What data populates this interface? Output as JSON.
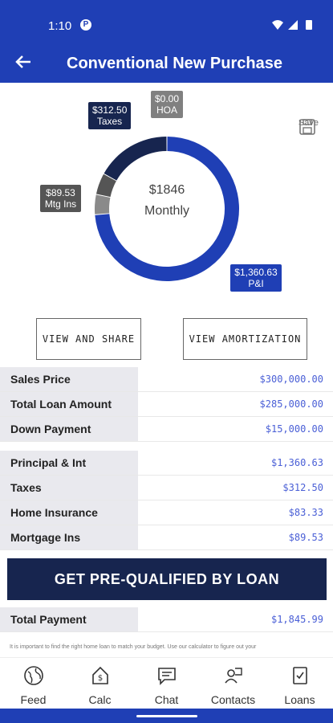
{
  "status": {
    "time": "1:10",
    "badge": "P"
  },
  "header": {
    "title": "Conventional New Purchase"
  },
  "chart": {
    "center_amount": "$1846",
    "center_label": "Monthly",
    "callouts": {
      "taxes": {
        "amount": "$312.50",
        "label": "Taxes"
      },
      "hoa": {
        "amount": "$0.00",
        "label": "HOA"
      },
      "mtg": {
        "amount": "$89.53",
        "label": "Mtg Ins"
      },
      "pi": {
        "amount": "$1,360.63",
        "label": "P&I"
      }
    },
    "save_label": "Save"
  },
  "chart_data": {
    "type": "pie",
    "categories": [
      "P&I",
      "Home Insurance",
      "Mtg Ins",
      "Taxes",
      "HOA"
    ],
    "values": [
      1360.63,
      83.33,
      89.53,
      312.5,
      0.0
    ],
    "colors": [
      "#1f3fb5",
      "#8a8a8a",
      "#555555",
      "#17254f",
      "#808080"
    ]
  },
  "actions": {
    "share": "VIEW AND SHARE",
    "amortization": "VIEW AMORTIZATION"
  },
  "loan_table": [
    {
      "label": "Sales Price",
      "value": "$300,000.00"
    },
    {
      "label": "Total Loan Amount",
      "value": "$285,000.00"
    },
    {
      "label": "Down Payment",
      "value": "$15,000.00"
    }
  ],
  "payment_table": [
    {
      "label": "Principal & Int",
      "value": "$1,360.63"
    },
    {
      "label": "Taxes",
      "value": "$312.50"
    },
    {
      "label": "Home Insurance",
      "value": "$83.33"
    },
    {
      "label": "Mortgage Ins",
      "value": "$89.53"
    }
  ],
  "cta": "GET PRE-QUALIFIED BY LOAN",
  "total": {
    "label": "Total Payment",
    "value": "$1,845.99"
  },
  "disclaimer": "It is important to find the right home loan to match your budget. Use our calculator to figure out your",
  "tabs": [
    {
      "label": "Feed",
      "icon": "globe-icon"
    },
    {
      "label": "Calc",
      "icon": "calculator-house-icon"
    },
    {
      "label": "Chat",
      "icon": "chat-icon"
    },
    {
      "label": "Contacts",
      "icon": "contacts-icon"
    },
    {
      "label": "Loans",
      "icon": "loan-document-icon"
    }
  ]
}
